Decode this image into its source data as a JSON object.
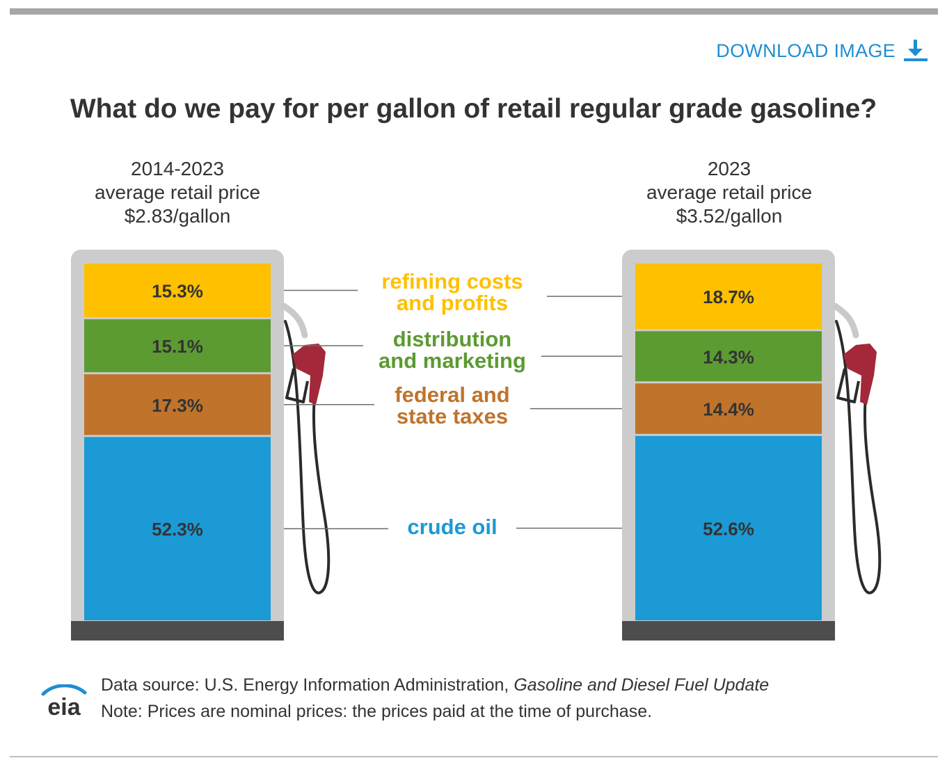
{
  "header": {
    "download_label": "DOWNLOAD IMAGE",
    "title": "What do we pay for per gallon of retail regular grade gasoline?"
  },
  "colors": {
    "refining": "#ffc000",
    "distribution": "#5c9a32",
    "taxes": "#c0732b",
    "crude": "#1b9ad6",
    "pump_frame": "#cccccc",
    "pump_base": "#4d4d4d",
    "nozzle": "#a3283a",
    "accent": "#1f8ed0"
  },
  "chart_data": {
    "type": "stacked-bar",
    "categories": [
      "crude oil",
      "federal and state taxes",
      "distribution and marketing",
      "refining costs and profits"
    ],
    "category_labels": [
      {
        "key": "refining",
        "lines": [
          "refining costs",
          "and profits"
        ],
        "color": "#ffc000"
      },
      {
        "key": "distribution",
        "lines": [
          "distribution",
          "and marketing"
        ],
        "color": "#5c9a32"
      },
      {
        "key": "taxes",
        "lines": [
          "federal and",
          "state taxes"
        ],
        "color": "#c0732b"
      },
      {
        "key": "crude",
        "lines": [
          "crude oil"
        ],
        "color": "#1b9ad6"
      }
    ],
    "pumps": [
      {
        "period": "2014-2023",
        "subtitle": "average retail price",
        "price": "$2.83/gallon",
        "values": {
          "refining": 15.3,
          "distribution": 15.1,
          "taxes": 17.3,
          "crude": 52.3
        },
        "labels": {
          "refining": "15.3%",
          "distribution": "15.1%",
          "taxes": "17.3%",
          "crude": "52.3%"
        }
      },
      {
        "period": "2023",
        "subtitle": "average retail price",
        "price": "$3.52/gallon",
        "values": {
          "refining": 18.7,
          "distribution": 14.3,
          "taxes": 14.4,
          "crude": 52.6
        },
        "labels": {
          "refining": "18.7%",
          "distribution": "14.3%",
          "taxes": "14.4%",
          "crude": "52.6%"
        }
      }
    ],
    "stack_order_top_to_bottom": [
      "refining",
      "distribution",
      "taxes",
      "crude"
    ]
  },
  "footer": {
    "logo_text": "eia",
    "source_prefix": "Data source: U.S. Energy Information Administration, ",
    "source_title": "Gasoline and Diesel Fuel Update",
    "note": "Note: Prices are nominal prices: the prices paid at the time of purchase."
  }
}
